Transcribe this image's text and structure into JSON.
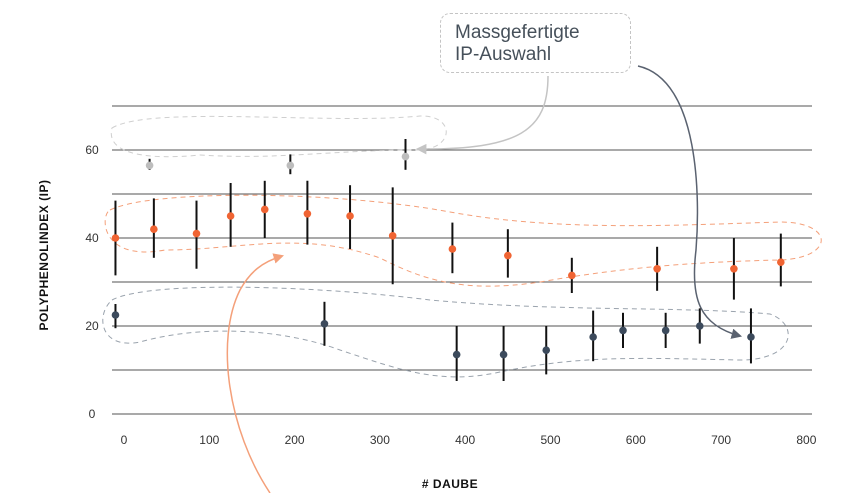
{
  "chart_data": {
    "type": "scatter",
    "title": "",
    "xlabel": "# DAUBE",
    "ylabel": "POLYPHENOLINDEX (IP)",
    "xlim": [
      -20,
      800
    ],
    "ylim": [
      0,
      70
    ],
    "x_ticks": [
      0,
      100,
      200,
      300,
      400,
      500,
      600,
      700,
      800
    ],
    "y_ticks": [
      0,
      20,
      40,
      60
    ],
    "grid": "horizontal",
    "annotation": {
      "lines": [
        "Massgefertigte",
        "IP-Auswahl"
      ]
    },
    "series": [
      {
        "color": "#bdbdbd",
        "points": [
          {
            "x": 30,
            "y": 56.5,
            "low": 55.5,
            "high": 58
          },
          {
            "x": 195,
            "y": 56.5,
            "low": 54.5,
            "high": 59
          },
          {
            "x": 330,
            "y": 58.5,
            "low": 55.5,
            "high": 62.5
          }
        ]
      },
      {
        "color": "#f06433",
        "points": [
          {
            "x": -10,
            "y": 40,
            "low": 31.5,
            "high": 48.5
          },
          {
            "x": 35,
            "y": 42,
            "low": 35.5,
            "high": 49
          },
          {
            "x": 85,
            "y": 41,
            "low": 33,
            "high": 48.5
          },
          {
            "x": 125,
            "y": 45,
            "low": 38,
            "high": 52.5
          },
          {
            "x": 165,
            "y": 46.5,
            "low": 40,
            "high": 53
          },
          {
            "x": 215,
            "y": 45.5,
            "low": 38.5,
            "high": 53
          },
          {
            "x": 265,
            "y": 45,
            "low": 37.5,
            "high": 52
          },
          {
            "x": 315,
            "y": 40.5,
            "low": 29.5,
            "high": 51.5
          },
          {
            "x": 385,
            "y": 37.5,
            "low": 32,
            "high": 43.5
          },
          {
            "x": 450,
            "y": 36,
            "low": 31,
            "high": 42
          },
          {
            "x": 525,
            "y": 31.5,
            "low": 27.5,
            "high": 35.5
          },
          {
            "x": 625,
            "y": 33,
            "low": 28,
            "high": 38
          },
          {
            "x": 715,
            "y": 33,
            "low": 26,
            "high": 40
          },
          {
            "x": 770,
            "y": 34.5,
            "low": 29,
            "high": 41
          }
        ]
      },
      {
        "color": "#3c4a5c",
        "points": [
          {
            "x": -10,
            "y": 22.5,
            "low": 19.5,
            "high": 25
          },
          {
            "x": 235,
            "y": 20.5,
            "low": 15.5,
            "high": 25.5
          },
          {
            "x": 390,
            "y": 13.5,
            "low": 7.5,
            "high": 20
          },
          {
            "x": 445,
            "y": 13.5,
            "low": 7.5,
            "high": 20
          },
          {
            "x": 495,
            "y": 14.5,
            "low": 9,
            "high": 20
          },
          {
            "x": 550,
            "y": 17.5,
            "low": 12,
            "high": 23.5
          },
          {
            "x": 585,
            "y": 19,
            "low": 15,
            "high": 23
          },
          {
            "x": 635,
            "y": 19,
            "low": 15,
            "high": 23
          },
          {
            "x": 675,
            "y": 20,
            "low": 16,
            "high": 24
          },
          {
            "x": 735,
            "y": 17.5,
            "low": 11.5,
            "high": 24
          }
        ]
      }
    ]
  }
}
